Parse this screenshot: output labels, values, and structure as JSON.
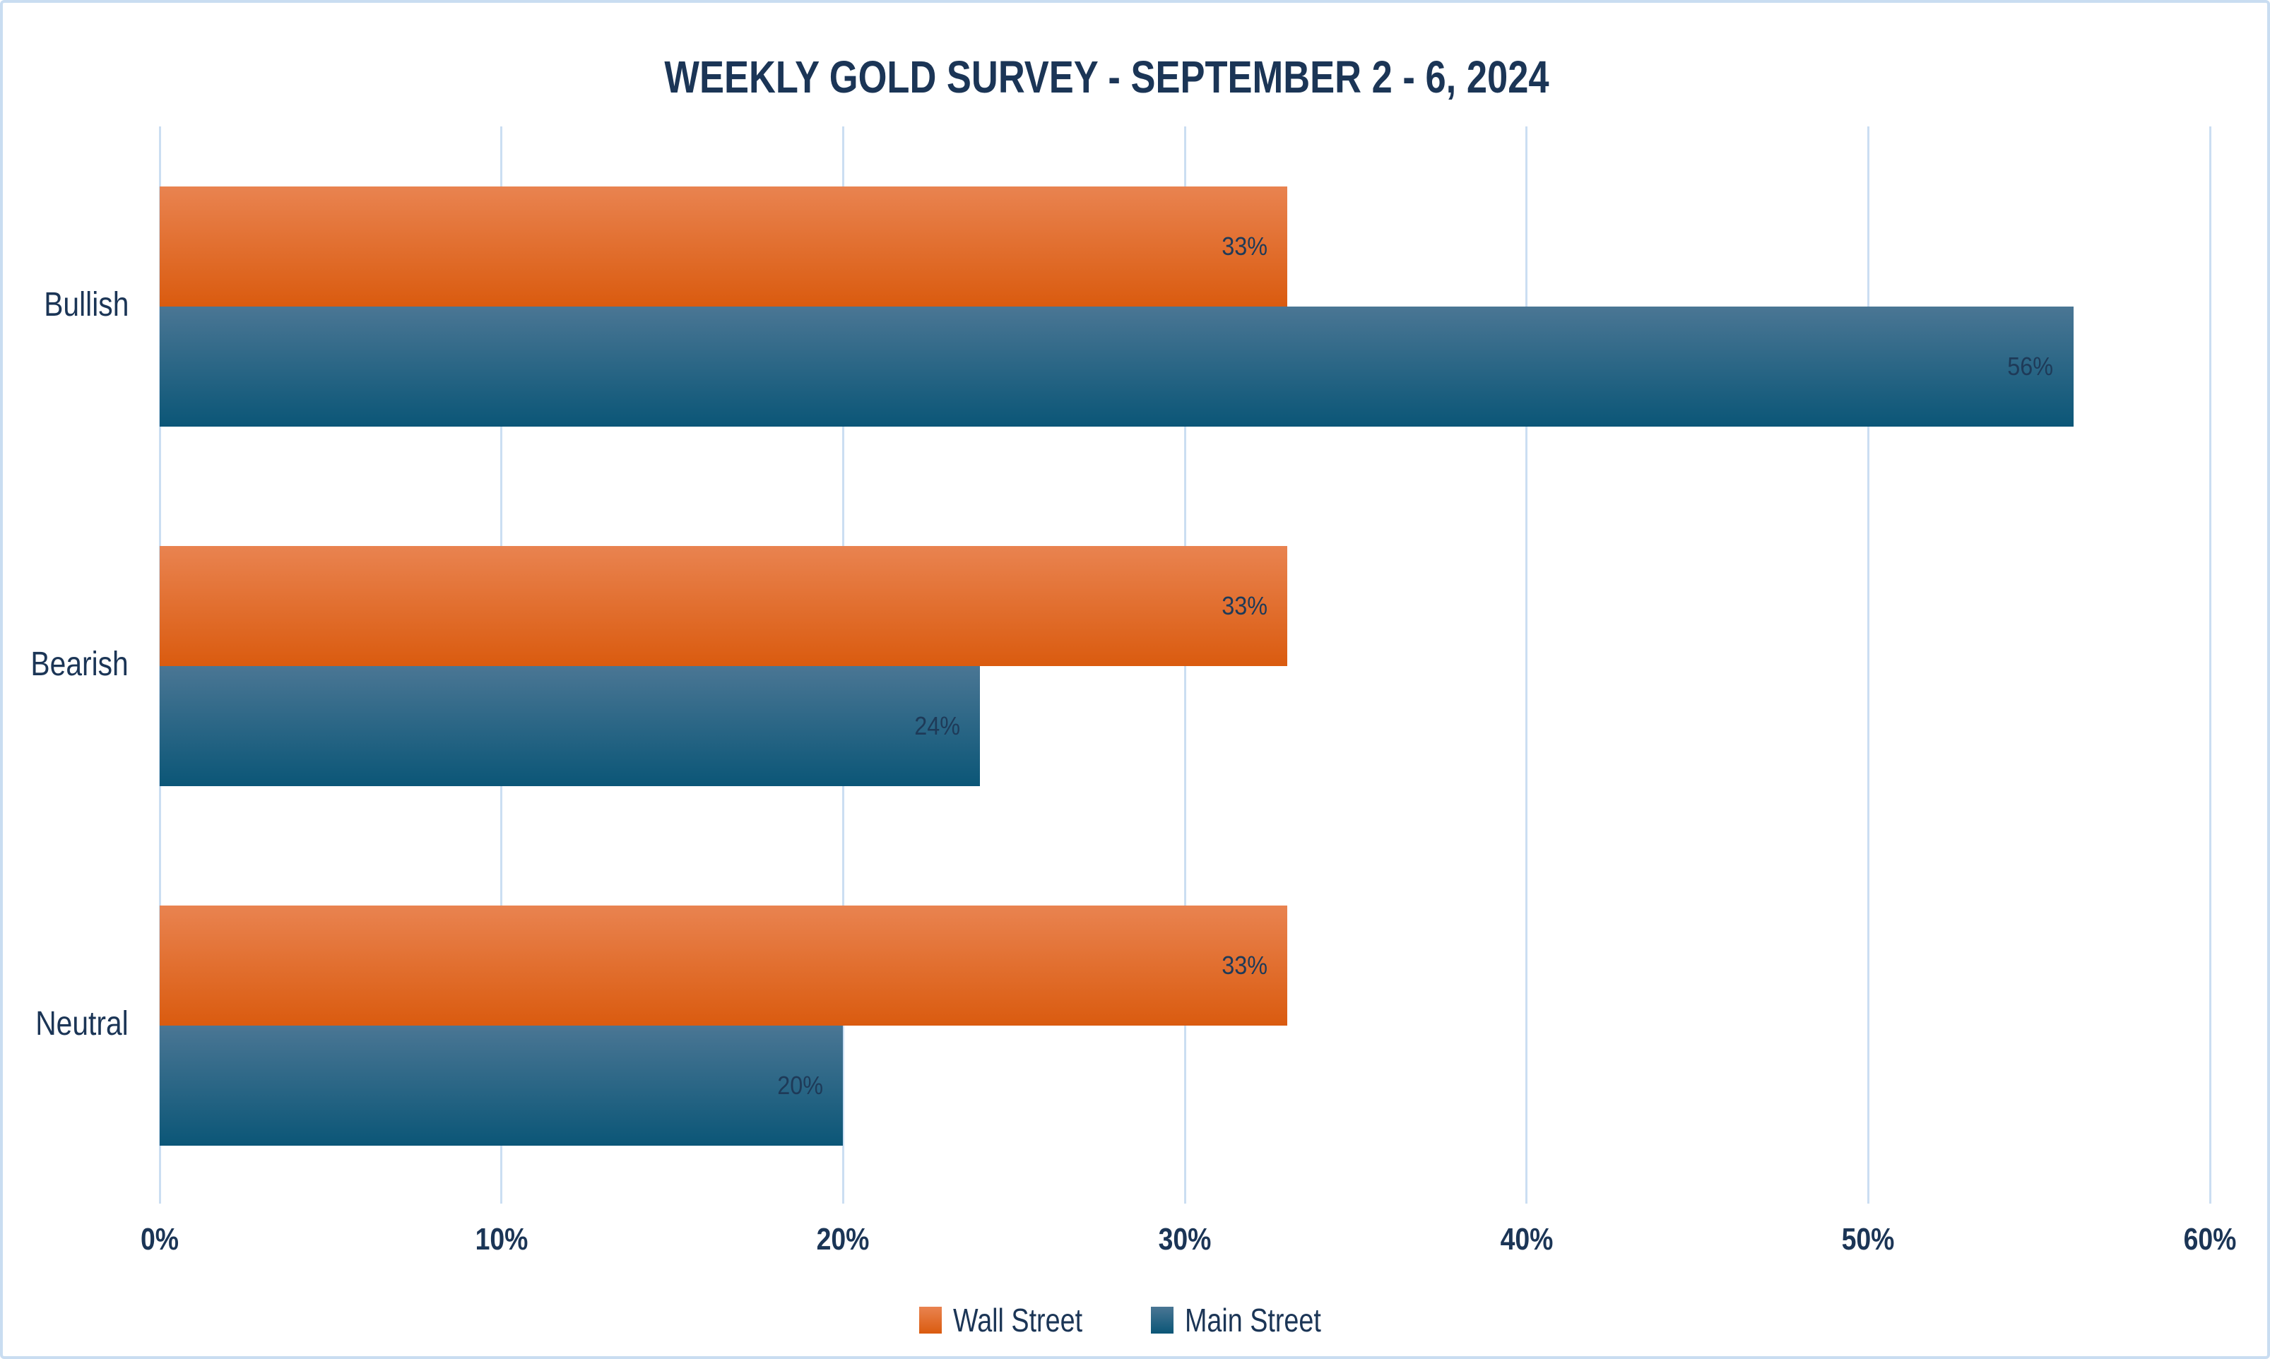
{
  "title": "WEEKLY GOLD SURVEY - SEPTEMBER 2 - 6, 2024",
  "colors": {
    "navy_text": "#1B3556",
    "gridline": "#CBDEF2",
    "page_border": "#C9DDF1",
    "wall_street_top": "#E98350",
    "wall_street_bottom": "#DA5B0F",
    "main_street_top": "#4A7694",
    "main_street_bottom": "#0B5677"
  },
  "chart_data": {
    "type": "bar",
    "orientation": "horizontal",
    "title": "WEEKLY GOLD SURVEY - SEPTEMBER 2 - 6, 2024",
    "categories": [
      "Bullish",
      "Bearish",
      "Neutral"
    ],
    "series": [
      {
        "name": "Wall Street",
        "values": [
          33,
          33,
          33
        ],
        "labels": [
          "33%",
          "33%",
          "33%"
        ],
        "color_top": "#E98350",
        "color_bottom": "#DA5B0F"
      },
      {
        "name": "Main Street",
        "values": [
          56,
          24,
          20
        ],
        "labels": [
          "56%",
          "24%",
          "20%"
        ],
        "color_top": "#4A7694",
        "color_bottom": "#0B5677"
      }
    ],
    "xlim": [
      0,
      60
    ],
    "x_ticks": [
      {
        "value": 0,
        "label": "0%"
      },
      {
        "value": 10,
        "label": "10%"
      },
      {
        "value": 20,
        "label": "20%"
      },
      {
        "value": 30,
        "label": "30%"
      },
      {
        "value": 40,
        "label": "40%"
      },
      {
        "value": 50,
        "label": "50%"
      },
      {
        "value": 60,
        "label": "60%"
      }
    ],
    "grid": "vertical",
    "legend_position": "bottom",
    "data_labels": "inside-end"
  }
}
